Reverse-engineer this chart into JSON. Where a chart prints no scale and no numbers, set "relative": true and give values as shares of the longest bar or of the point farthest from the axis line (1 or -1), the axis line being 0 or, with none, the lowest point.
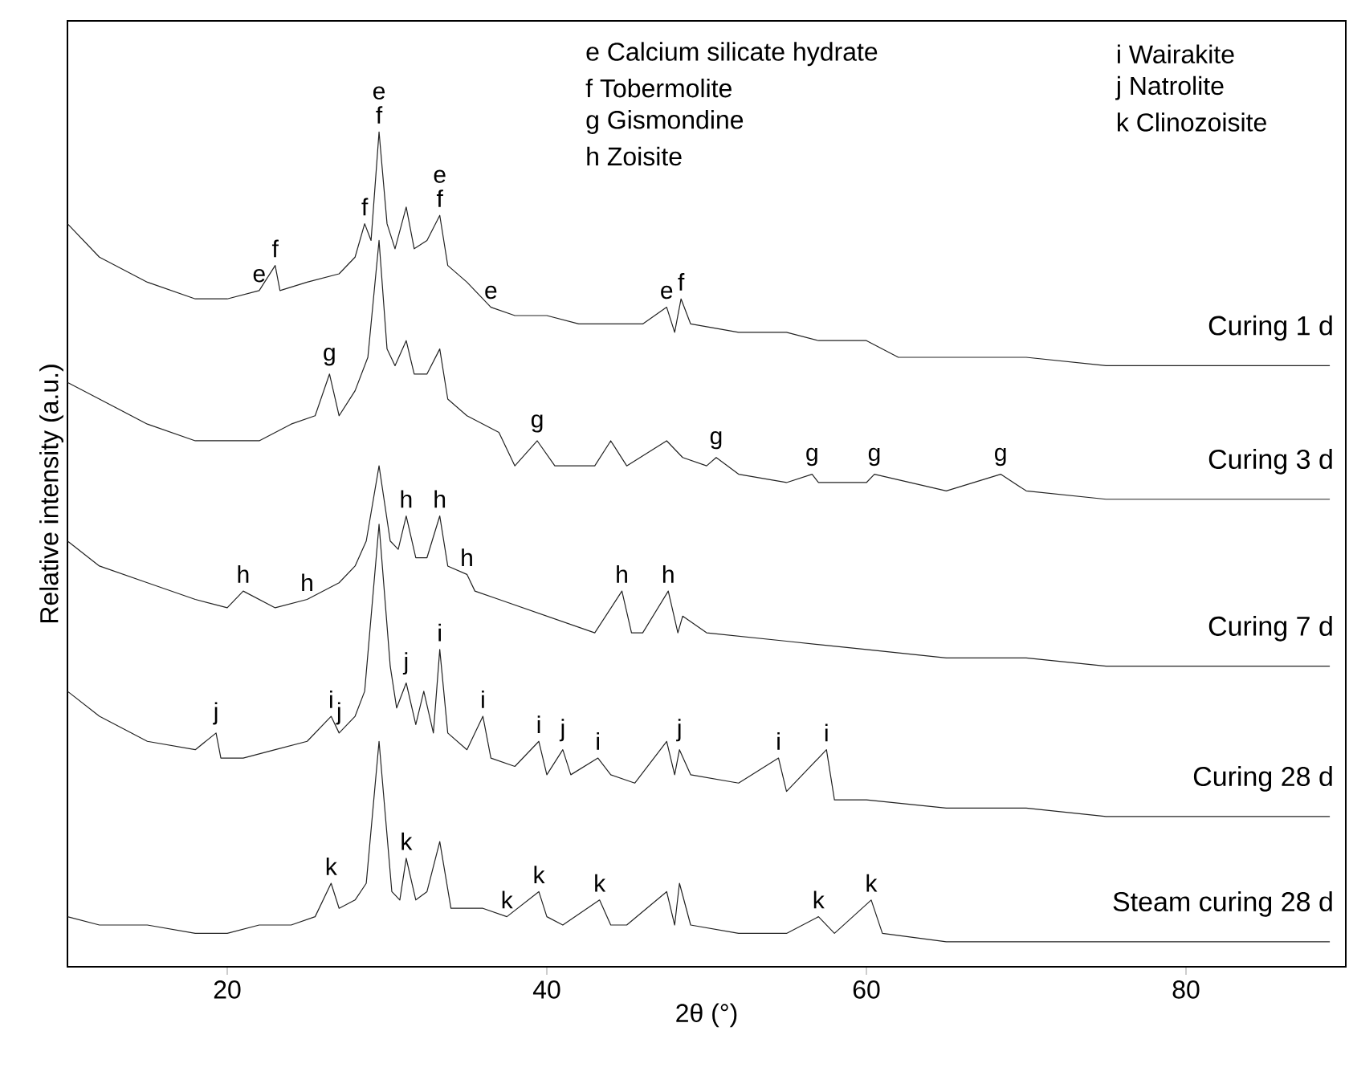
{
  "chart_data": {
    "type": "line",
    "relative": true,
    "xlabel": "2θ (°)",
    "ylabel": "Relative intensity (a.u.)",
    "xlim": [
      10,
      90
    ],
    "xticks": [
      20,
      40,
      60,
      80
    ],
    "series": [
      {
        "name": "Curing 1 d",
        "color": "#222222",
        "x": [
          10,
          12,
          15,
          18,
          20,
          22,
          23,
          23.3,
          25,
          27,
          28,
          28.6,
          29,
          29.5,
          30,
          30.5,
          31.2,
          31.7,
          32.5,
          33.3,
          33.8,
          35,
          36.5,
          38,
          40,
          42,
          44,
          46,
          47.5,
          48,
          48.4,
          49,
          52,
          55,
          57,
          60,
          62,
          65,
          70,
          75,
          80,
          85,
          89
        ],
        "values": [
          0.89,
          0.85,
          0.82,
          0.8,
          0.8,
          0.81,
          0.84,
          0.81,
          0.82,
          0.83,
          0.85,
          0.89,
          0.87,
          1.0,
          0.89,
          0.86,
          0.91,
          0.86,
          0.87,
          0.9,
          0.84,
          0.82,
          0.79,
          0.78,
          0.78,
          0.77,
          0.77,
          0.77,
          0.79,
          0.76,
          0.8,
          0.77,
          0.76,
          0.76,
          0.75,
          0.75,
          0.73,
          0.73,
          0.73,
          0.72,
          0.72,
          0.72,
          0.72
        ]
      },
      {
        "name": "Curing 3 d",
        "color": "#222222",
        "x": [
          10,
          12,
          15,
          18,
          20,
          22,
          24,
          25.5,
          26.4,
          27,
          28,
          28.8,
          29.5,
          30,
          30.5,
          31.2,
          31.7,
          32.5,
          33.3,
          33.8,
          35,
          37,
          38,
          39.4,
          40.5,
          43,
          44,
          45,
          47.5,
          48.5,
          50,
          50.6,
          52,
          55,
          56.6,
          57,
          60,
          60.5,
          65,
          68.4,
          70,
          75,
          80,
          85,
          89
        ],
        "values": [
          0.7,
          0.68,
          0.65,
          0.63,
          0.63,
          0.63,
          0.65,
          0.66,
          0.71,
          0.66,
          0.69,
          0.73,
          0.87,
          0.74,
          0.72,
          0.75,
          0.71,
          0.71,
          0.74,
          0.68,
          0.66,
          0.64,
          0.6,
          0.63,
          0.6,
          0.6,
          0.63,
          0.6,
          0.63,
          0.61,
          0.6,
          0.61,
          0.59,
          0.58,
          0.59,
          0.58,
          0.58,
          0.59,
          0.57,
          0.59,
          0.57,
          0.56,
          0.56,
          0.56,
          0.56
        ]
      },
      {
        "name": "Curing 7 d",
        "color": "#222222",
        "x": [
          10,
          12,
          15,
          18,
          20,
          21,
          23,
          25,
          27,
          28,
          28.7,
          29.5,
          30.2,
          30.7,
          31.2,
          31.8,
          32.5,
          33.3,
          33.8,
          35,
          35.5,
          37,
          40,
          43,
          44.7,
          45.3,
          46,
          47.6,
          48.2,
          48.5,
          50,
          55,
          60,
          65,
          70,
          75,
          80,
          85,
          89
        ],
        "values": [
          0.51,
          0.48,
          0.46,
          0.44,
          0.43,
          0.45,
          0.43,
          0.44,
          0.46,
          0.48,
          0.51,
          0.6,
          0.51,
          0.5,
          0.54,
          0.49,
          0.49,
          0.54,
          0.48,
          0.47,
          0.45,
          0.44,
          0.42,
          0.4,
          0.45,
          0.4,
          0.4,
          0.45,
          0.4,
          0.42,
          0.4,
          0.39,
          0.38,
          0.37,
          0.37,
          0.36,
          0.36,
          0.36,
          0.36
        ]
      },
      {
        "name": "Curing 28 d",
        "color": "#222222",
        "x": [
          10,
          12,
          15,
          18,
          19.3,
          19.6,
          21,
          23,
          25,
          26.5,
          27,
          28,
          28.6,
          29.5,
          30.2,
          30.6,
          31.2,
          31.8,
          32.3,
          32.9,
          33.3,
          33.8,
          35,
          36,
          36.5,
          38,
          39.5,
          40,
          41,
          41.5,
          43.2,
          44,
          45.5,
          47.5,
          48,
          48.3,
          49,
          52,
          54.5,
          55,
          57.5,
          58,
          60,
          65,
          70,
          75,
          80,
          85,
          89
        ],
        "values": [
          0.33,
          0.3,
          0.27,
          0.26,
          0.28,
          0.25,
          0.25,
          0.26,
          0.27,
          0.3,
          0.28,
          0.3,
          0.33,
          0.53,
          0.36,
          0.31,
          0.34,
          0.29,
          0.33,
          0.28,
          0.38,
          0.28,
          0.26,
          0.3,
          0.25,
          0.24,
          0.27,
          0.23,
          0.26,
          0.23,
          0.25,
          0.23,
          0.22,
          0.27,
          0.23,
          0.26,
          0.23,
          0.22,
          0.25,
          0.21,
          0.26,
          0.2,
          0.2,
          0.19,
          0.19,
          0.18,
          0.18,
          0.18,
          0.18
        ]
      },
      {
        "name": "Steam curing 28 d",
        "color": "#222222",
        "x": [
          10,
          12,
          15,
          18,
          20,
          22,
          24,
          25.5,
          26.5,
          27,
          28,
          28.7,
          29.5,
          30.3,
          30.8,
          31.2,
          31.8,
          32.5,
          33.3,
          34,
          36,
          37.5,
          39.5,
          40,
          41,
          43.3,
          44,
          45,
          47.5,
          48,
          48.3,
          49,
          52,
          55,
          57,
          58,
          60.3,
          61,
          65,
          70,
          75,
          80,
          85,
          89
        ],
        "values": [
          0.06,
          0.05,
          0.05,
          0.04,
          0.04,
          0.05,
          0.05,
          0.06,
          0.1,
          0.07,
          0.08,
          0.1,
          0.27,
          0.09,
          0.08,
          0.13,
          0.08,
          0.09,
          0.15,
          0.07,
          0.07,
          0.06,
          0.09,
          0.06,
          0.05,
          0.08,
          0.05,
          0.05,
          0.09,
          0.05,
          0.1,
          0.05,
          0.04,
          0.04,
          0.06,
          0.04,
          0.08,
          0.04,
          0.03,
          0.03,
          0.03,
          0.03,
          0.03,
          0.03
        ]
      }
    ],
    "annotations": [
      "e Calcium silicate hydrate",
      "f Tobermolite",
      "g Gismondine",
      "h Zoisite",
      "i Wairakite",
      "j Natrolite",
      "k Clinozoisite",
      {
        "text": "e",
        "x": 22,
        "y": 0.81
      },
      {
        "text": "f",
        "x": 23,
        "y": 0.84
      },
      {
        "text": "f",
        "x": 28.6,
        "y": 0.89
      },
      {
        "text": "e",
        "x": 29.5,
        "y": 1.0
      },
      {
        "text": "f",
        "x": 29.5,
        "y": 1.0
      },
      {
        "text": "e",
        "x": 33.3,
        "y": 0.9
      },
      {
        "text": "f",
        "x": 33.3,
        "y": 0.9
      },
      {
        "text": "e",
        "x": 36.5,
        "y": 0.79
      },
      {
        "text": "e",
        "x": 47.5,
        "y": 0.79
      },
      {
        "text": "f",
        "x": 48.4,
        "y": 0.8
      },
      {
        "text": "g",
        "x": 26.4,
        "y": 0.71
      },
      {
        "text": "g",
        "x": 39.4,
        "y": 0.63
      },
      {
        "text": "g",
        "x": 50.6,
        "y": 0.61
      },
      {
        "text": "g",
        "x": 56.6,
        "y": 0.59
      },
      {
        "text": "g",
        "x": 60.5,
        "y": 0.59
      },
      {
        "text": "g",
        "x": 68.4,
        "y": 0.59
      },
      {
        "text": "h",
        "x": 21,
        "y": 0.45
      },
      {
        "text": "h",
        "x": 25,
        "y": 0.44
      },
      {
        "text": "h",
        "x": 31.2,
        "y": 0.54
      },
      {
        "text": "h",
        "x": 33.3,
        "y": 0.54
      },
      {
        "text": "h",
        "x": 35,
        "y": 0.47
      },
      {
        "text": "h",
        "x": 44.7,
        "y": 0.45
      },
      {
        "text": "h",
        "x": 47.6,
        "y": 0.45
      },
      {
        "text": "j",
        "x": 19.3,
        "y": 0.28
      },
      {
        "text": "i",
        "x": 26.5,
        "y": 0.3
      },
      {
        "text": "j",
        "x": 27,
        "y": 0.28
      },
      {
        "text": "j",
        "x": 31.2,
        "y": 0.34
      },
      {
        "text": "i",
        "x": 33.3,
        "y": 0.38
      },
      {
        "text": "i",
        "x": 36,
        "y": 0.3
      },
      {
        "text": "i",
        "x": 39.5,
        "y": 0.27
      },
      {
        "text": "j",
        "x": 41,
        "y": 0.26
      },
      {
        "text": "i",
        "x": 43.2,
        "y": 0.25
      },
      {
        "text": "j",
        "x": 48.3,
        "y": 0.26
      },
      {
        "text": "i",
        "x": 54.5,
        "y": 0.25
      },
      {
        "text": "i",
        "x": 57.5,
        "y": 0.26
      },
      {
        "text": "k",
        "x": 26.5,
        "y": 0.1
      },
      {
        "text": "k",
        "x": 31.2,
        "y": 0.13
      },
      {
        "text": "k",
        "x": 37.5,
        "y": 0.06
      },
      {
        "text": "k",
        "x": 39.5,
        "y": 0.09
      },
      {
        "text": "k",
        "x": 43.3,
        "y": 0.08
      },
      {
        "text": "k",
        "x": 57,
        "y": 0.06
      },
      {
        "text": "k",
        "x": 60.3,
        "y": 0.08
      }
    ]
  }
}
